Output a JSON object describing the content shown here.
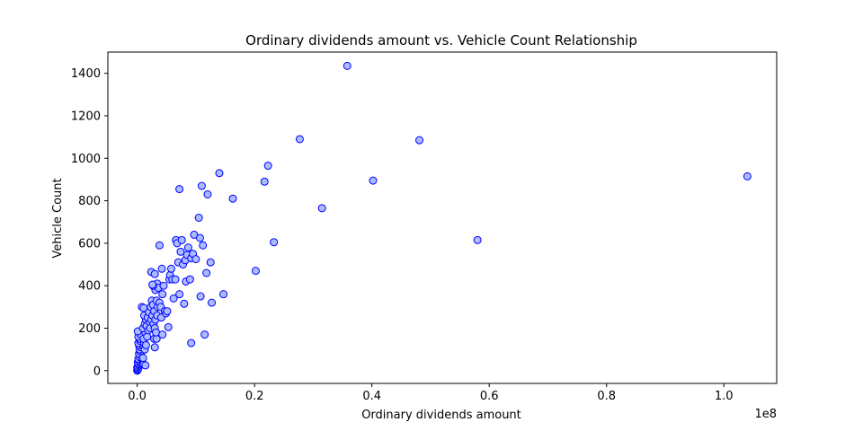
{
  "chart_data": {
    "type": "scatter",
    "title": "Ordinary dividends amount vs. Vehicle Count Relationship",
    "xlabel": "Ordinary dividends amount",
    "ylabel": "Vehicle Count",
    "x_offset_label": "1e8",
    "xlim": [
      -0.05,
      1.09
    ],
    "ylim": [
      -60,
      1500
    ],
    "x_ticks": [
      0.0,
      0.2,
      0.4,
      0.6,
      0.8,
      1.0
    ],
    "x_tick_labels": [
      "0.0",
      "0.2",
      "0.4",
      "0.6",
      "0.8",
      "1.0"
    ],
    "y_ticks": [
      0,
      200,
      400,
      600,
      800,
      1000,
      1200,
      1400
    ],
    "y_tick_labels": [
      "0",
      "200",
      "400",
      "600",
      "800",
      "1000",
      "1200",
      "1400"
    ],
    "grid": false,
    "marker": {
      "face_color": "#aabbff",
      "edge_color": "#0000ff",
      "shape": "circle"
    },
    "points": [
      {
        "x": 0.0,
        "y": 0
      },
      {
        "x": 0.001,
        "y": 5
      },
      {
        "x": 0.002,
        "y": 10
      },
      {
        "x": 0.0,
        "y": 15
      },
      {
        "x": 0.001,
        "y": 20
      },
      {
        "x": 0.003,
        "y": 25
      },
      {
        "x": 0.002,
        "y": 30
      },
      {
        "x": 0.004,
        "y": 35
      },
      {
        "x": 0.001,
        "y": 40
      },
      {
        "x": 0.003,
        "y": 45
      },
      {
        "x": 0.005,
        "y": 50
      },
      {
        "x": 0.002,
        "y": 55
      },
      {
        "x": 0.006,
        "y": 60
      },
      {
        "x": 0.004,
        "y": 65
      },
      {
        "x": 0.007,
        "y": 70
      },
      {
        "x": 0.003,
        "y": 80
      },
      {
        "x": 0.005,
        "y": 90
      },
      {
        "x": 0.008,
        "y": 95
      },
      {
        "x": 0.004,
        "y": 100
      },
      {
        "x": 0.006,
        "y": 110
      },
      {
        "x": 0.003,
        "y": 120
      },
      {
        "x": 0.007,
        "y": 125
      },
      {
        "x": 0.002,
        "y": 130
      },
      {
        "x": 0.005,
        "y": 140
      },
      {
        "x": 0.004,
        "y": 150
      },
      {
        "x": 0.002,
        "y": 160
      },
      {
        "x": 0.006,
        "y": 170
      },
      {
        "x": 0.001,
        "y": 185
      },
      {
        "x": 0.011,
        "y": 30
      },
      {
        "x": 0.014,
        "y": 25
      },
      {
        "x": 0.01,
        "y": 60
      },
      {
        "x": 0.013,
        "y": 100
      },
      {
        "x": 0.012,
        "y": 130
      },
      {
        "x": 0.011,
        "y": 150
      },
      {
        "x": 0.014,
        "y": 180
      },
      {
        "x": 0.01,
        "y": 200
      },
      {
        "x": 0.013,
        "y": 220
      },
      {
        "x": 0.015,
        "y": 240
      },
      {
        "x": 0.012,
        "y": 260
      },
      {
        "x": 0.016,
        "y": 210
      },
      {
        "x": 0.008,
        "y": 300
      },
      {
        "x": 0.011,
        "y": 295
      },
      {
        "x": 0.017,
        "y": 160
      },
      {
        "x": 0.015,
        "y": 120
      },
      {
        "x": 0.019,
        "y": 190
      },
      {
        "x": 0.021,
        "y": 230
      },
      {
        "x": 0.018,
        "y": 250
      },
      {
        "x": 0.02,
        "y": 275
      },
      {
        "x": 0.022,
        "y": 200
      },
      {
        "x": 0.024,
        "y": 240
      },
      {
        "x": 0.026,
        "y": 260
      },
      {
        "x": 0.023,
        "y": 300
      },
      {
        "x": 0.025,
        "y": 330
      },
      {
        "x": 0.027,
        "y": 310
      },
      {
        "x": 0.029,
        "y": 280
      },
      {
        "x": 0.028,
        "y": 220
      },
      {
        "x": 0.03,
        "y": 200
      },
      {
        "x": 0.031,
        "y": 240
      },
      {
        "x": 0.029,
        "y": 150
      },
      {
        "x": 0.03,
        "y": 110
      },
      {
        "x": 0.033,
        "y": 150
      },
      {
        "x": 0.032,
        "y": 180
      },
      {
        "x": 0.034,
        "y": 260
      },
      {
        "x": 0.035,
        "y": 300
      },
      {
        "x": 0.033,
        "y": 330
      },
      {
        "x": 0.031,
        "y": 380
      },
      {
        "x": 0.034,
        "y": 410
      },
      {
        "x": 0.036,
        "y": 390
      },
      {
        "x": 0.038,
        "y": 320
      },
      {
        "x": 0.04,
        "y": 300
      },
      {
        "x": 0.041,
        "y": 250
      },
      {
        "x": 0.043,
        "y": 170
      },
      {
        "x": 0.043,
        "y": 360
      },
      {
        "x": 0.042,
        "y": 480
      },
      {
        "x": 0.045,
        "y": 400
      },
      {
        "x": 0.047,
        "y": 280
      },
      {
        "x": 0.049,
        "y": 270
      },
      {
        "x": 0.051,
        "y": 280
      },
      {
        "x": 0.053,
        "y": 205
      },
      {
        "x": 0.027,
        "y": 400
      },
      {
        "x": 0.024,
        "y": 465
      },
      {
        "x": 0.026,
        "y": 405
      },
      {
        "x": 0.03,
        "y": 455
      },
      {
        "x": 0.038,
        "y": 590
      },
      {
        "x": 0.055,
        "y": 430
      },
      {
        "x": 0.056,
        "y": 450
      },
      {
        "x": 0.058,
        "y": 480
      },
      {
        "x": 0.06,
        "y": 430
      },
      {
        "x": 0.062,
        "y": 340
      },
      {
        "x": 0.065,
        "y": 430
      },
      {
        "x": 0.066,
        "y": 615
      },
      {
        "x": 0.068,
        "y": 600
      },
      {
        "x": 0.07,
        "y": 510
      },
      {
        "x": 0.072,
        "y": 360
      },
      {
        "x": 0.074,
        "y": 560
      },
      {
        "x": 0.076,
        "y": 615
      },
      {
        "x": 0.078,
        "y": 500
      },
      {
        "x": 0.08,
        "y": 315
      },
      {
        "x": 0.082,
        "y": 520
      },
      {
        "x": 0.083,
        "y": 420
      },
      {
        "x": 0.085,
        "y": 545
      },
      {
        "x": 0.087,
        "y": 580
      },
      {
        "x": 0.09,
        "y": 430
      },
      {
        "x": 0.092,
        "y": 530
      },
      {
        "x": 0.095,
        "y": 550
      },
      {
        "x": 0.097,
        "y": 640
      },
      {
        "x": 0.1,
        "y": 525
      },
      {
        "x": 0.072,
        "y": 855
      },
      {
        "x": 0.092,
        "y": 130
      },
      {
        "x": 0.105,
        "y": 720
      },
      {
        "x": 0.107,
        "y": 625
      },
      {
        "x": 0.11,
        "y": 870
      },
      {
        "x": 0.108,
        "y": 350
      },
      {
        "x": 0.112,
        "y": 590
      },
      {
        "x": 0.115,
        "y": 170
      },
      {
        "x": 0.118,
        "y": 460
      },
      {
        "x": 0.12,
        "y": 830
      },
      {
        "x": 0.125,
        "y": 510
      },
      {
        "x": 0.127,
        "y": 320
      },
      {
        "x": 0.14,
        "y": 930
      },
      {
        "x": 0.147,
        "y": 360
      },
      {
        "x": 0.163,
        "y": 810
      },
      {
        "x": 0.202,
        "y": 470
      },
      {
        "x": 0.217,
        "y": 890
      },
      {
        "x": 0.223,
        "y": 965
      },
      {
        "x": 0.233,
        "y": 605
      },
      {
        "x": 0.277,
        "y": 1090
      },
      {
        "x": 0.315,
        "y": 765
      },
      {
        "x": 0.358,
        "y": 1435
      },
      {
        "x": 0.402,
        "y": 895
      },
      {
        "x": 0.481,
        "y": 1085
      },
      {
        "x": 0.58,
        "y": 615
      },
      {
        "x": 1.04,
        "y": 915
      }
    ]
  }
}
